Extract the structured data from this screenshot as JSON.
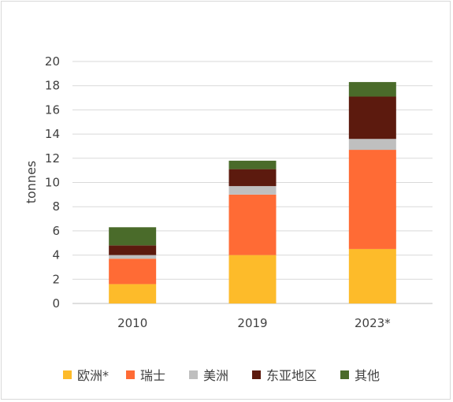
{
  "chart_data": {
    "type": "bar",
    "stacked": true,
    "title": "",
    "xlabel": "",
    "ylabel": "tonnes",
    "ylim": [
      0,
      20
    ],
    "yticks": [
      0,
      2,
      4,
      6,
      8,
      10,
      12,
      14,
      16,
      18,
      20
    ],
    "grid": true,
    "legend_position": "bottom",
    "categories": [
      "2010",
      "2019",
      "2023*"
    ],
    "series": [
      {
        "name": "欧洲*",
        "color": "#FDBB2A",
        "values": [
          1.6,
          4.0,
          4.5
        ]
      },
      {
        "name": "瑞士",
        "color": "#FF6B35",
        "values": [
          2.1,
          5.0,
          8.2
        ]
      },
      {
        "name": "美洲",
        "color": "#BFBFBF",
        "values": [
          0.3,
          0.7,
          0.9
        ]
      },
      {
        "name": "东亚地区",
        "color": "#5C1A0E",
        "values": [
          0.8,
          1.4,
          3.5
        ]
      },
      {
        "name": "其他",
        "color": "#4A6B2A",
        "values": [
          1.5,
          0.7,
          1.2
        ]
      }
    ]
  }
}
